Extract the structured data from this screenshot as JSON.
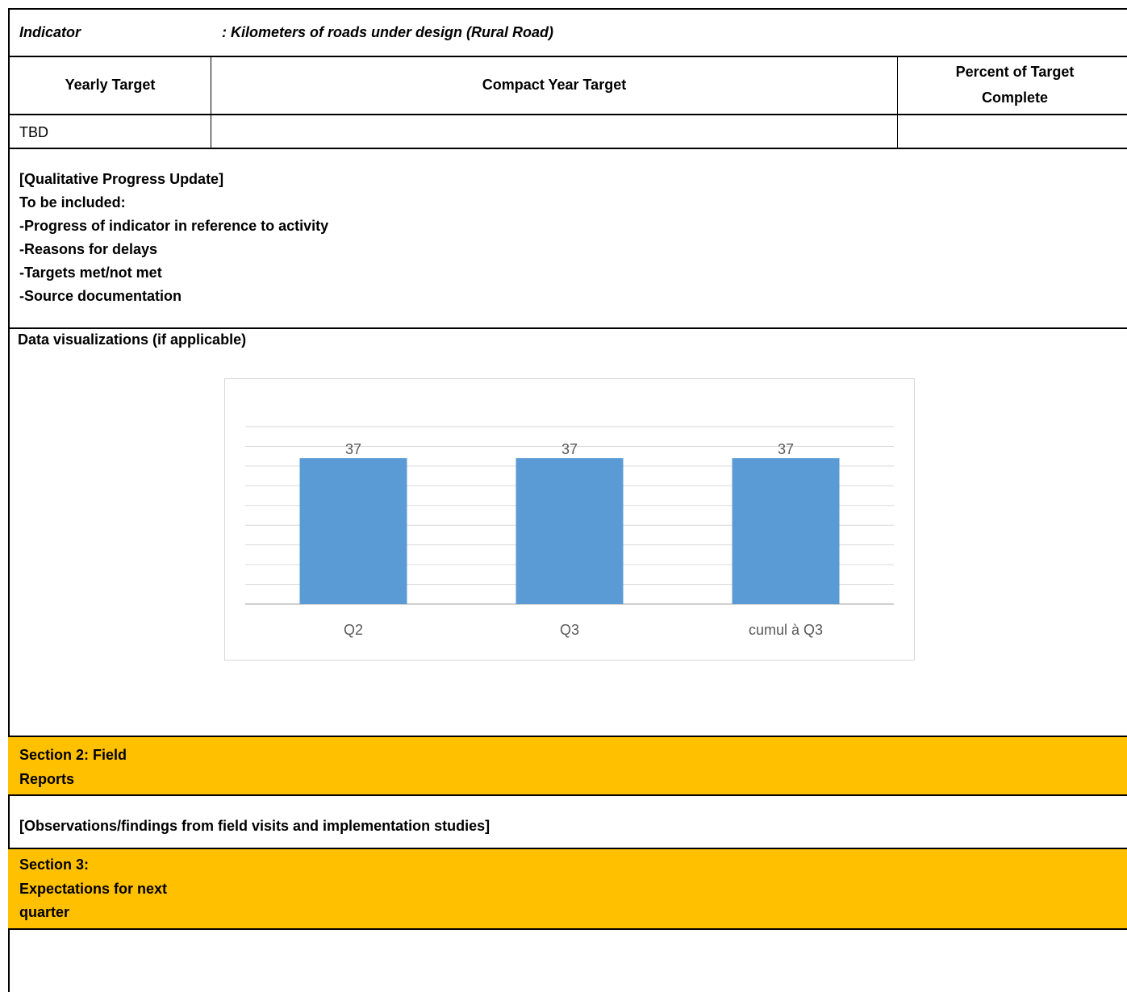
{
  "indicator": {
    "label": "Indicator",
    "value": ": Kilometers of roads under design (Rural Road)"
  },
  "targets_table": {
    "headers": [
      "Yearly Target",
      "Compact Year Target",
      "Percent of Target\nComplete"
    ],
    "header_line1_col3": "Percent of Target",
    "header_line2_col3": "Complete",
    "row": [
      "TBD",
      "",
      ""
    ]
  },
  "qualitative": {
    "lines": [
      "[Qualitative Progress Update]",
      "To be included:",
      "-Progress of indicator in reference to activity",
      "-Reasons for delays",
      "-Targets met/not met",
      "-Source documentation"
    ]
  },
  "visualizations": {
    "title": "Data visualizations (if applicable)"
  },
  "chart_data": {
    "type": "bar",
    "categories": [
      "Q2",
      "Q3",
      "cumul à Q3"
    ],
    "values": [
      37,
      37,
      37
    ],
    "data_labels": [
      "37",
      "37",
      "37"
    ],
    "title": "",
    "xlabel": "",
    "ylabel": "",
    "ylim": [
      0,
      45
    ],
    "grid": true,
    "legend": "none",
    "bar_color": "#5B9BD5"
  },
  "section2": {
    "title_line1": "Section 2: Field",
    "title_line2": "Reports",
    "body": "[Observations/findings from field visits and implementation studies]"
  },
  "section3": {
    "title_line1": "Section 3:",
    "title_line2": "Expectations for next",
    "title_line3": "quarter"
  },
  "colors": {
    "section_header_bg": "#FFC000",
    "bar": "#5B9BD5"
  }
}
